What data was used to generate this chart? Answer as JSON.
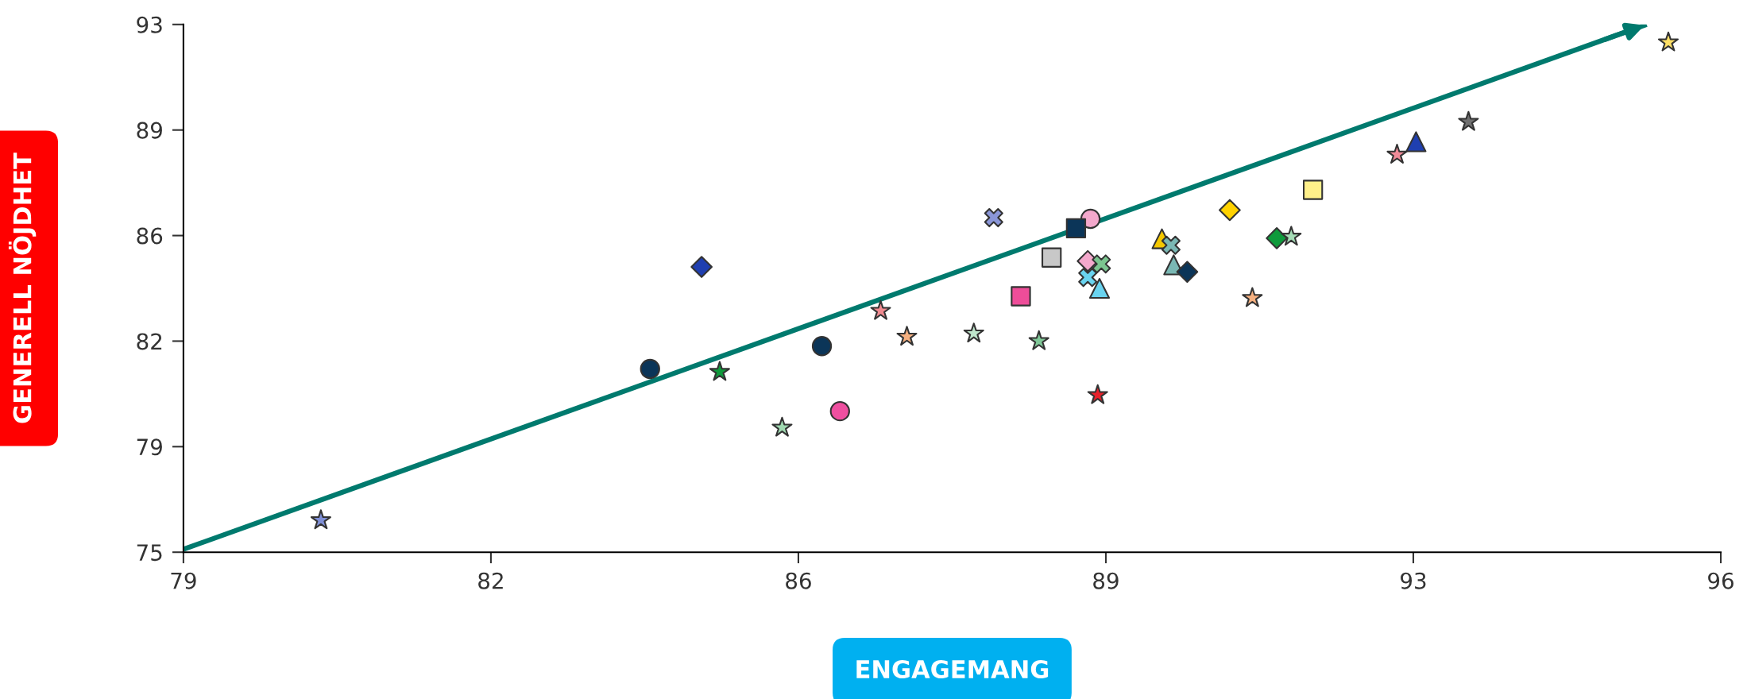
{
  "chart_data": {
    "type": "scatter",
    "xlabel": "ENGAGEMANG",
    "ylabel": "GENERELL NÖJDHET",
    "xlim": [
      79,
      96
    ],
    "ylim": [
      75,
      93
    ],
    "xticks": [
      79,
      {
        "value": 82.4,
        "label": "82"
      },
      {
        "value": 85.8,
        "label": "86"
      },
      {
        "value": 89.2,
        "label": "89"
      },
      {
        "value": 92.6,
        "label": "93"
      },
      96
    ],
    "yticks": [
      75,
      {
        "value": 78.6,
        "label": "79"
      },
      {
        "value": 82.2,
        "label": "82"
      },
      {
        "value": 85.8,
        "label": "86"
      },
      {
        "value": 89.4,
        "label": "89"
      },
      93
    ],
    "grid": false,
    "series": [
      {
        "type": "line",
        "color": "#007a6e",
        "marker": "none",
        "x": [
          79.0,
          95.18
        ],
        "values": [
          75.1,
          93.0
        ]
      },
      {
        "marker": "circle",
        "x": [
          84.16,
          86.06,
          86.26,
          89.03
        ],
        "values": [
          81.25,
          82.03,
          79.81,
          86.37
        ],
        "colors": [
          "#0b3558",
          "#0b3558",
          "#ef4fa0",
          "#f4a8cc"
        ]
      },
      {
        "marker": "square",
        "x": [
          88.26,
          88.6,
          88.87,
          91.49
        ],
        "values": [
          83.73,
          85.05,
          86.05,
          87.36
        ],
        "colors": [
          "#ee4d99",
          "#c8c8c8",
          "#0b3558",
          "#fff08a"
        ]
      },
      {
        "marker": "triangle",
        "x": [
          89.13,
          89.82,
          89.95,
          92.63
        ],
        "values": [
          84.0,
          85.69,
          84.8,
          89.0
        ],
        "colors": [
          "#6ad4f0",
          "#f5c800",
          "#7ab8b4",
          "#1f3fb0"
        ]
      },
      {
        "marker": "diamond",
        "x": [
          84.73,
          89.0,
          90.1,
          90.57,
          91.09
        ],
        "values": [
          84.73,
          84.93,
          84.56,
          86.67,
          85.71
        ],
        "colors": [
          "#1f3fb0",
          "#f4a8cc",
          "#0b3558",
          "#ffd200",
          "#0f9a3c"
        ]
      },
      {
        "marker": "cross",
        "x": [
          87.96,
          89.15,
          89.0,
          89.92
        ],
        "values": [
          86.41,
          84.83,
          84.37,
          85.47
        ],
        "colors": [
          "#8a96d8",
          "#7cc690",
          "#6ad4f0",
          "#7ab8b4"
        ]
      },
      {
        "marker": "star",
        "x": [
          84.93,
          89.11,
          92.42
        ],
        "values": [
          81.15,
          80.36,
          88.56
        ],
        "colors": [
          "#0f9a3c",
          "#e8202a",
          "#f08a98"
        ]
      },
      {
        "marker": "star",
        "x": [
          80.52,
          86.71,
          88.46
        ],
        "values": [
          76.09,
          83.23,
          82.2
        ],
        "colors": [
          "#7f8fd6",
          "#f08a90",
          "#80c898"
        ]
      },
      {
        "marker": "star",
        "x": [
          87.0,
          87.74,
          90.82,
          91.25
        ],
        "values": [
          82.35,
          82.46,
          83.67,
          85.76
        ],
        "colors": [
          "#f5b080",
          "#bfe6cc",
          "#f5b080",
          "#a5dcb6"
        ]
      },
      {
        "marker": "star",
        "x": [
          85.62,
          93.21,
          95.42
        ],
        "values": [
          79.25,
          89.68,
          92.39
        ],
        "colors": [
          "#9fd8b0",
          "#707070",
          "#ffe066"
        ]
      }
    ]
  }
}
